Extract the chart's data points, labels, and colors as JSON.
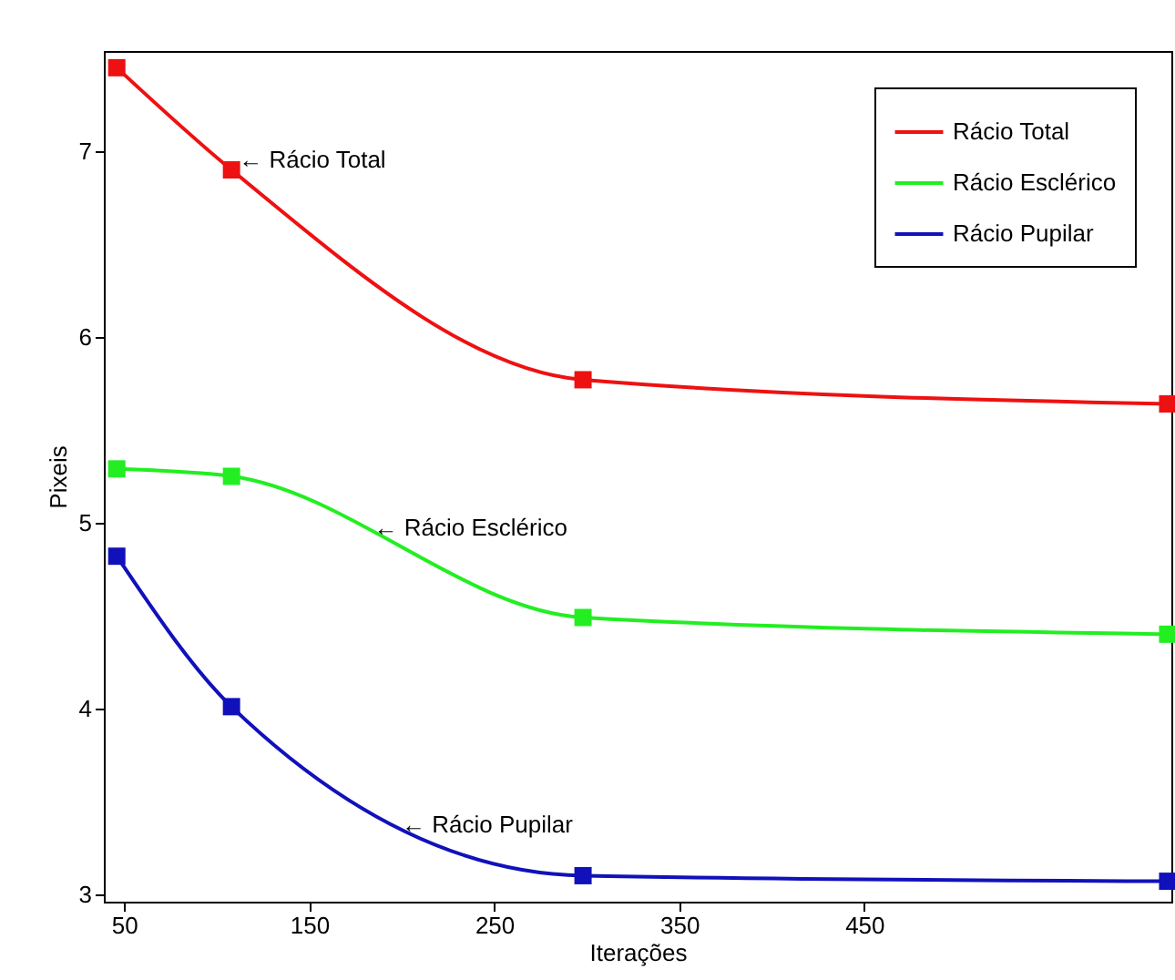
{
  "chart_data": {
    "type": "line",
    "xlabel": "Iterações",
    "ylabel": "Pixeis",
    "x": [
      46,
      108,
      298,
      614
    ],
    "series": [
      {
        "name": "Rácio Total",
        "color": "#ee1111",
        "values": [
          7.45,
          6.9,
          5.77,
          5.64
        ]
      },
      {
        "name": "Rácio Esclérico",
        "color": "#22ee22",
        "values": [
          5.29,
          5.25,
          4.49,
          4.4
        ]
      },
      {
        "name": "Rácio Pupilar",
        "color": "#1111bb",
        "values": [
          4.82,
          4.01,
          3.1,
          3.07
        ]
      }
    ],
    "xlim": [
      39,
      616
    ],
    "xticks": [
      50,
      150,
      250,
      350,
      450
    ],
    "ylim": [
      2.96,
      7.54
    ],
    "yticks": [
      3,
      4,
      5,
      6,
      7
    ],
    "marker": "square",
    "line_style": "solid",
    "grid": false,
    "legend": "top right",
    "annotations": [
      {
        "text": "← Rácio Total",
        "x": 112,
        "y": 6.95
      },
      {
        "text": "← Rácio Esclérico",
        "x": 185,
        "y": 4.97
      },
      {
        "text": "← Rácio Pupilar",
        "x": 200,
        "y": 3.37
      }
    ]
  }
}
